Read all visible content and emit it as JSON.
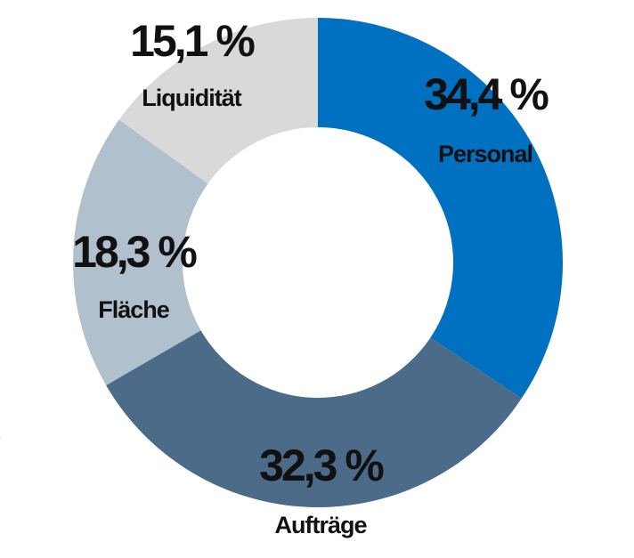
{
  "chart_data": {
    "type": "donut",
    "categories": [
      "Personal",
      "Aufträge",
      "Fläche",
      "Liquidität"
    ],
    "values": [
      34.4,
      32.3,
      18.3,
      15.1
    ],
    "value_labels": [
      "34,4 %",
      "32,3 %",
      "18,3 %",
      "15,1 %"
    ],
    "colors": [
      "#0070c0",
      "#4b6b89",
      "#b1c0cd",
      "#d9d9d9"
    ],
    "start": "top",
    "direction": "clockwise"
  },
  "side_text": "t"
}
